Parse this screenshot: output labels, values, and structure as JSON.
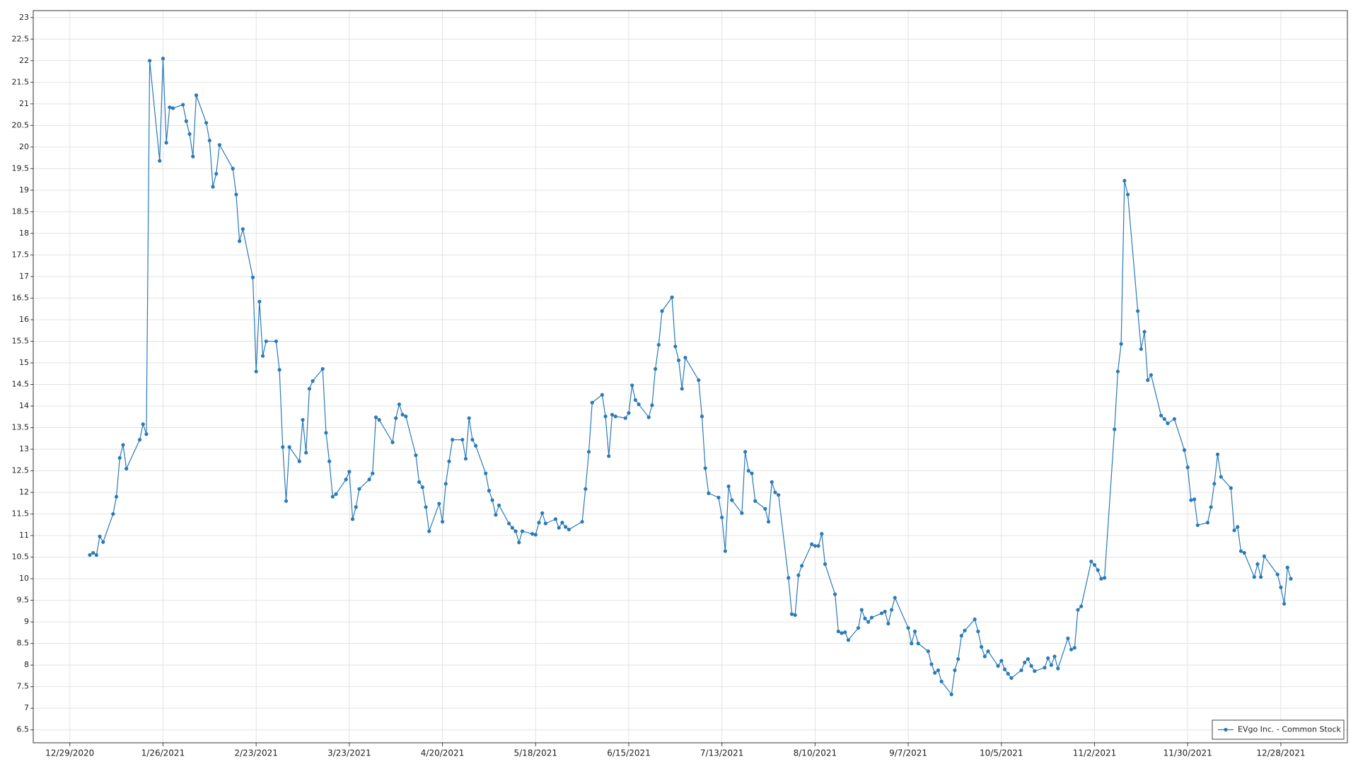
{
  "chart_data": {
    "type": "line",
    "x": [
      "1/4/2021",
      "1/5/2021",
      "1/6/2021",
      "1/7/2021",
      "1/8/2021",
      "1/11/2021",
      "1/12/2021",
      "1/13/2021",
      "1/14/2021",
      "1/15/2021",
      "1/19/2021",
      "1/20/2021",
      "1/21/2021",
      "1/22/2021",
      "1/25/2021",
      "1/26/2021",
      "1/27/2021",
      "1/28/2021",
      "1/29/2021",
      "2/1/2021",
      "2/2/2021",
      "2/3/2021",
      "2/4/2021",
      "2/5/2021",
      "2/8/2021",
      "2/9/2021",
      "2/10/2021",
      "2/11/2021",
      "2/12/2021",
      "2/16/2021",
      "2/17/2021",
      "2/18/2021",
      "2/19/2021",
      "2/22/2021",
      "2/23/2021",
      "2/24/2021",
      "2/25/2021",
      "2/26/2021",
      "3/1/2021",
      "3/2/2021",
      "3/3/2021",
      "3/4/2021",
      "3/5/2021",
      "3/8/2021",
      "3/9/2021",
      "3/10/2021",
      "3/11/2021",
      "3/12/2021",
      "3/15/2021",
      "3/16/2021",
      "3/17/2021",
      "3/18/2021",
      "3/19/2021",
      "3/22/2021",
      "3/23/2021",
      "3/24/2021",
      "3/25/2021",
      "3/26/2021",
      "3/29/2021",
      "3/30/2021",
      "3/31/2021",
      "4/1/2021",
      "4/5/2021",
      "4/6/2021",
      "4/7/2021",
      "4/8/2021",
      "4/9/2021",
      "4/12/2021",
      "4/13/2021",
      "4/14/2021",
      "4/15/2021",
      "4/16/2021",
      "4/19/2021",
      "4/20/2021",
      "4/21/2021",
      "4/22/2021",
      "4/23/2021",
      "4/26/2021",
      "4/27/2021",
      "4/28/2021",
      "4/29/2021",
      "4/30/2021",
      "5/3/2021",
      "5/4/2021",
      "5/5/2021",
      "5/6/2021",
      "5/7/2021",
      "5/10/2021",
      "5/11/2021",
      "5/12/2021",
      "5/13/2021",
      "5/14/2021",
      "5/17/2021",
      "5/18/2021",
      "5/19/2021",
      "5/20/2021",
      "5/21/2021",
      "5/24/2021",
      "5/25/2021",
      "5/26/2021",
      "5/27/2021",
      "5/28/2021",
      "6/1/2021",
      "6/2/2021",
      "6/3/2021",
      "6/4/2021",
      "6/7/2021",
      "6/8/2021",
      "6/9/2021",
      "6/10/2021",
      "6/11/2021",
      "6/14/2021",
      "6/15/2021",
      "6/16/2021",
      "6/17/2021",
      "6/18/2021",
      "6/21/2021",
      "6/22/2021",
      "6/23/2021",
      "6/24/2021",
      "6/25/2021",
      "6/28/2021",
      "6/29/2021",
      "6/30/2021",
      "7/1/2021",
      "7/2/2021",
      "7/6/2021",
      "7/7/2021",
      "7/8/2021",
      "7/9/2021",
      "7/12/2021",
      "7/13/2021",
      "7/14/2021",
      "7/15/2021",
      "7/16/2021",
      "7/19/2021",
      "7/20/2021",
      "7/21/2021",
      "7/22/2021",
      "7/23/2021",
      "7/26/2021",
      "7/27/2021",
      "7/28/2021",
      "7/29/2021",
      "7/30/2021",
      "8/2/2021",
      "8/3/2021",
      "8/4/2021",
      "8/5/2021",
      "8/6/2021",
      "8/9/2021",
      "8/10/2021",
      "8/11/2021",
      "8/12/2021",
      "8/13/2021",
      "8/16/2021",
      "8/17/2021",
      "8/18/2021",
      "8/19/2021",
      "8/20/2021",
      "8/23/2021",
      "8/24/2021",
      "8/25/2021",
      "8/26/2021",
      "8/27/2021",
      "8/30/2021",
      "8/31/2021",
      "9/1/2021",
      "9/2/2021",
      "9/3/2021",
      "9/7/2021",
      "9/8/2021",
      "9/9/2021",
      "9/10/2021",
      "9/13/2021",
      "9/14/2021",
      "9/15/2021",
      "9/16/2021",
      "9/17/2021",
      "9/20/2021",
      "9/21/2021",
      "9/22/2021",
      "9/23/2021",
      "9/24/2021",
      "9/27/2021",
      "9/28/2021",
      "9/29/2021",
      "9/30/2021",
      "10/1/2021",
      "10/4/2021",
      "10/5/2021",
      "10/6/2021",
      "10/7/2021",
      "10/8/2021",
      "10/11/2021",
      "10/12/2021",
      "10/13/2021",
      "10/14/2021",
      "10/15/2021",
      "10/18/2021",
      "10/19/2021",
      "10/20/2021",
      "10/21/2021",
      "10/22/2021",
      "10/25/2021",
      "10/26/2021",
      "10/27/2021",
      "10/28/2021",
      "10/29/2021",
      "11/1/2021",
      "11/2/2021",
      "11/3/2021",
      "11/4/2021",
      "11/5/2021",
      "11/8/2021",
      "11/9/2021",
      "11/10/2021",
      "11/11/2021",
      "11/12/2021",
      "11/15/2021",
      "11/16/2021",
      "11/17/2021",
      "11/18/2021",
      "11/19/2021",
      "11/22/2021",
      "11/23/2021",
      "11/24/2021",
      "11/26/2021",
      "11/29/2021",
      "11/30/2021",
      "12/1/2021",
      "12/2/2021",
      "12/3/2021",
      "12/6/2021",
      "12/7/2021",
      "12/8/2021",
      "12/9/2021",
      "12/10/2021",
      "12/13/2021",
      "12/14/2021",
      "12/15/2021",
      "12/16/2021",
      "12/17/2021",
      "12/20/2021",
      "12/21/2021",
      "12/22/2021",
      "12/23/2021",
      "12/27/2021",
      "12/28/2021",
      "12/29/2021",
      "12/30/2021",
      "12/31/2021"
    ],
    "series": [
      {
        "name": "EVgo Inc. - Common Stock",
        "color": "#2a7ab8",
        "values": [
          10.55,
          10.6,
          10.55,
          10.98,
          10.85,
          11.5,
          11.9,
          12.8,
          13.1,
          12.55,
          13.22,
          13.58,
          13.35,
          22.0,
          19.68,
          22.05,
          20.1,
          20.92,
          20.9,
          20.98,
          20.6,
          20.3,
          19.78,
          21.2,
          20.56,
          20.15,
          19.08,
          19.38,
          20.05,
          19.5,
          18.9,
          17.82,
          18.1,
          16.98,
          14.8,
          16.42,
          15.16,
          15.5,
          15.5,
          14.84,
          13.05,
          11.8,
          13.05,
          12.72,
          13.68,
          12.92,
          14.4,
          14.58,
          14.86,
          13.38,
          12.72,
          11.9,
          11.96,
          12.3,
          12.48,
          11.38,
          11.66,
          12.08,
          12.3,
          12.44,
          13.74,
          13.68,
          13.16,
          13.72,
          14.04,
          13.8,
          13.76,
          12.86,
          12.24,
          12.12,
          11.66,
          11.1,
          11.74,
          11.32,
          12.2,
          12.72,
          13.22,
          13.22,
          12.78,
          13.72,
          13.22,
          13.08,
          12.44,
          12.04,
          11.82,
          11.48,
          11.7,
          11.28,
          11.18,
          11.1,
          10.84,
          11.1,
          11.04,
          11.02,
          11.3,
          11.52,
          11.28,
          11.38,
          11.18,
          11.3,
          11.2,
          11.14,
          11.32,
          12.08,
          12.94,
          14.08,
          14.26,
          13.76,
          12.84,
          13.8,
          13.76,
          13.72,
          13.84,
          14.48,
          14.14,
          14.04,
          13.74,
          14.02,
          14.86,
          15.42,
          16.2,
          16.52,
          15.38,
          15.06,
          14.4,
          15.12,
          14.6,
          13.76,
          12.56,
          11.98,
          11.88,
          11.42,
          10.64,
          12.14,
          11.82,
          11.52,
          12.94,
          12.5,
          12.44,
          11.8,
          11.62,
          11.32,
          12.24,
          12.0,
          11.94,
          10.02,
          9.18,
          9.16,
          10.08,
          10.3,
          10.8,
          10.76,
          10.76,
          11.04,
          10.34,
          9.64,
          8.78,
          8.74,
          8.76,
          8.58,
          8.86,
          9.28,
          9.08,
          9.0,
          9.1,
          9.2,
          9.24,
          8.96,
          9.28,
          9.56,
          8.86,
          8.5,
          8.78,
          8.5,
          8.32,
          8.02,
          7.82,
          7.88,
          7.62,
          7.32,
          7.88,
          8.14,
          8.68,
          8.8,
          9.06,
          8.78,
          8.42,
          8.2,
          8.32,
          7.98,
          8.1,
          7.9,
          7.8,
          7.7,
          7.88,
          8.06,
          8.14,
          7.98,
          7.86,
          7.94,
          8.16,
          8.0,
          8.2,
          7.92,
          8.62,
          8.36,
          8.4,
          9.28,
          9.36,
          10.4,
          10.32,
          10.2,
          10.0,
          10.02,
          13.46,
          14.8,
          15.44,
          19.22,
          18.9,
          16.2,
          15.32,
          15.72,
          14.6,
          14.72,
          13.78,
          13.7,
          13.6,
          13.7,
          12.98,
          12.58,
          11.82,
          11.84,
          11.24,
          11.3,
          11.66,
          12.2,
          12.88,
          12.36,
          12.1,
          11.12,
          11.2,
          10.64,
          10.6,
          10.04,
          10.34,
          10.04,
          10.52,
          10.1,
          9.8,
          9.42,
          10.26,
          10.0
        ]
      }
    ],
    "xlim": [
      "12/18/2020",
      "1/17/2022"
    ],
    "xticks": [
      "12/29/2020",
      "1/26/2021",
      "2/23/2021",
      "3/23/2021",
      "4/20/2021",
      "5/18/2021",
      "6/15/2021",
      "7/13/2021",
      "8/10/2021",
      "9/7/2021",
      "10/5/2021",
      "11/2/2021",
      "11/30/2021",
      "12/28/2021"
    ],
    "ylim": [
      6.2,
      23.16
    ],
    "yticks": [
      6.5,
      7,
      7.5,
      8,
      8.5,
      9,
      9.5,
      10,
      10.5,
      11,
      11.5,
      12,
      12.5,
      13,
      13.5,
      14,
      14.5,
      15,
      15.5,
      16,
      16.5,
      17,
      17.5,
      18,
      18.5,
      19,
      19.5,
      20,
      20.5,
      21,
      21.5,
      22,
      22.5,
      23
    ],
    "grid": true,
    "legend": "lower right"
  }
}
